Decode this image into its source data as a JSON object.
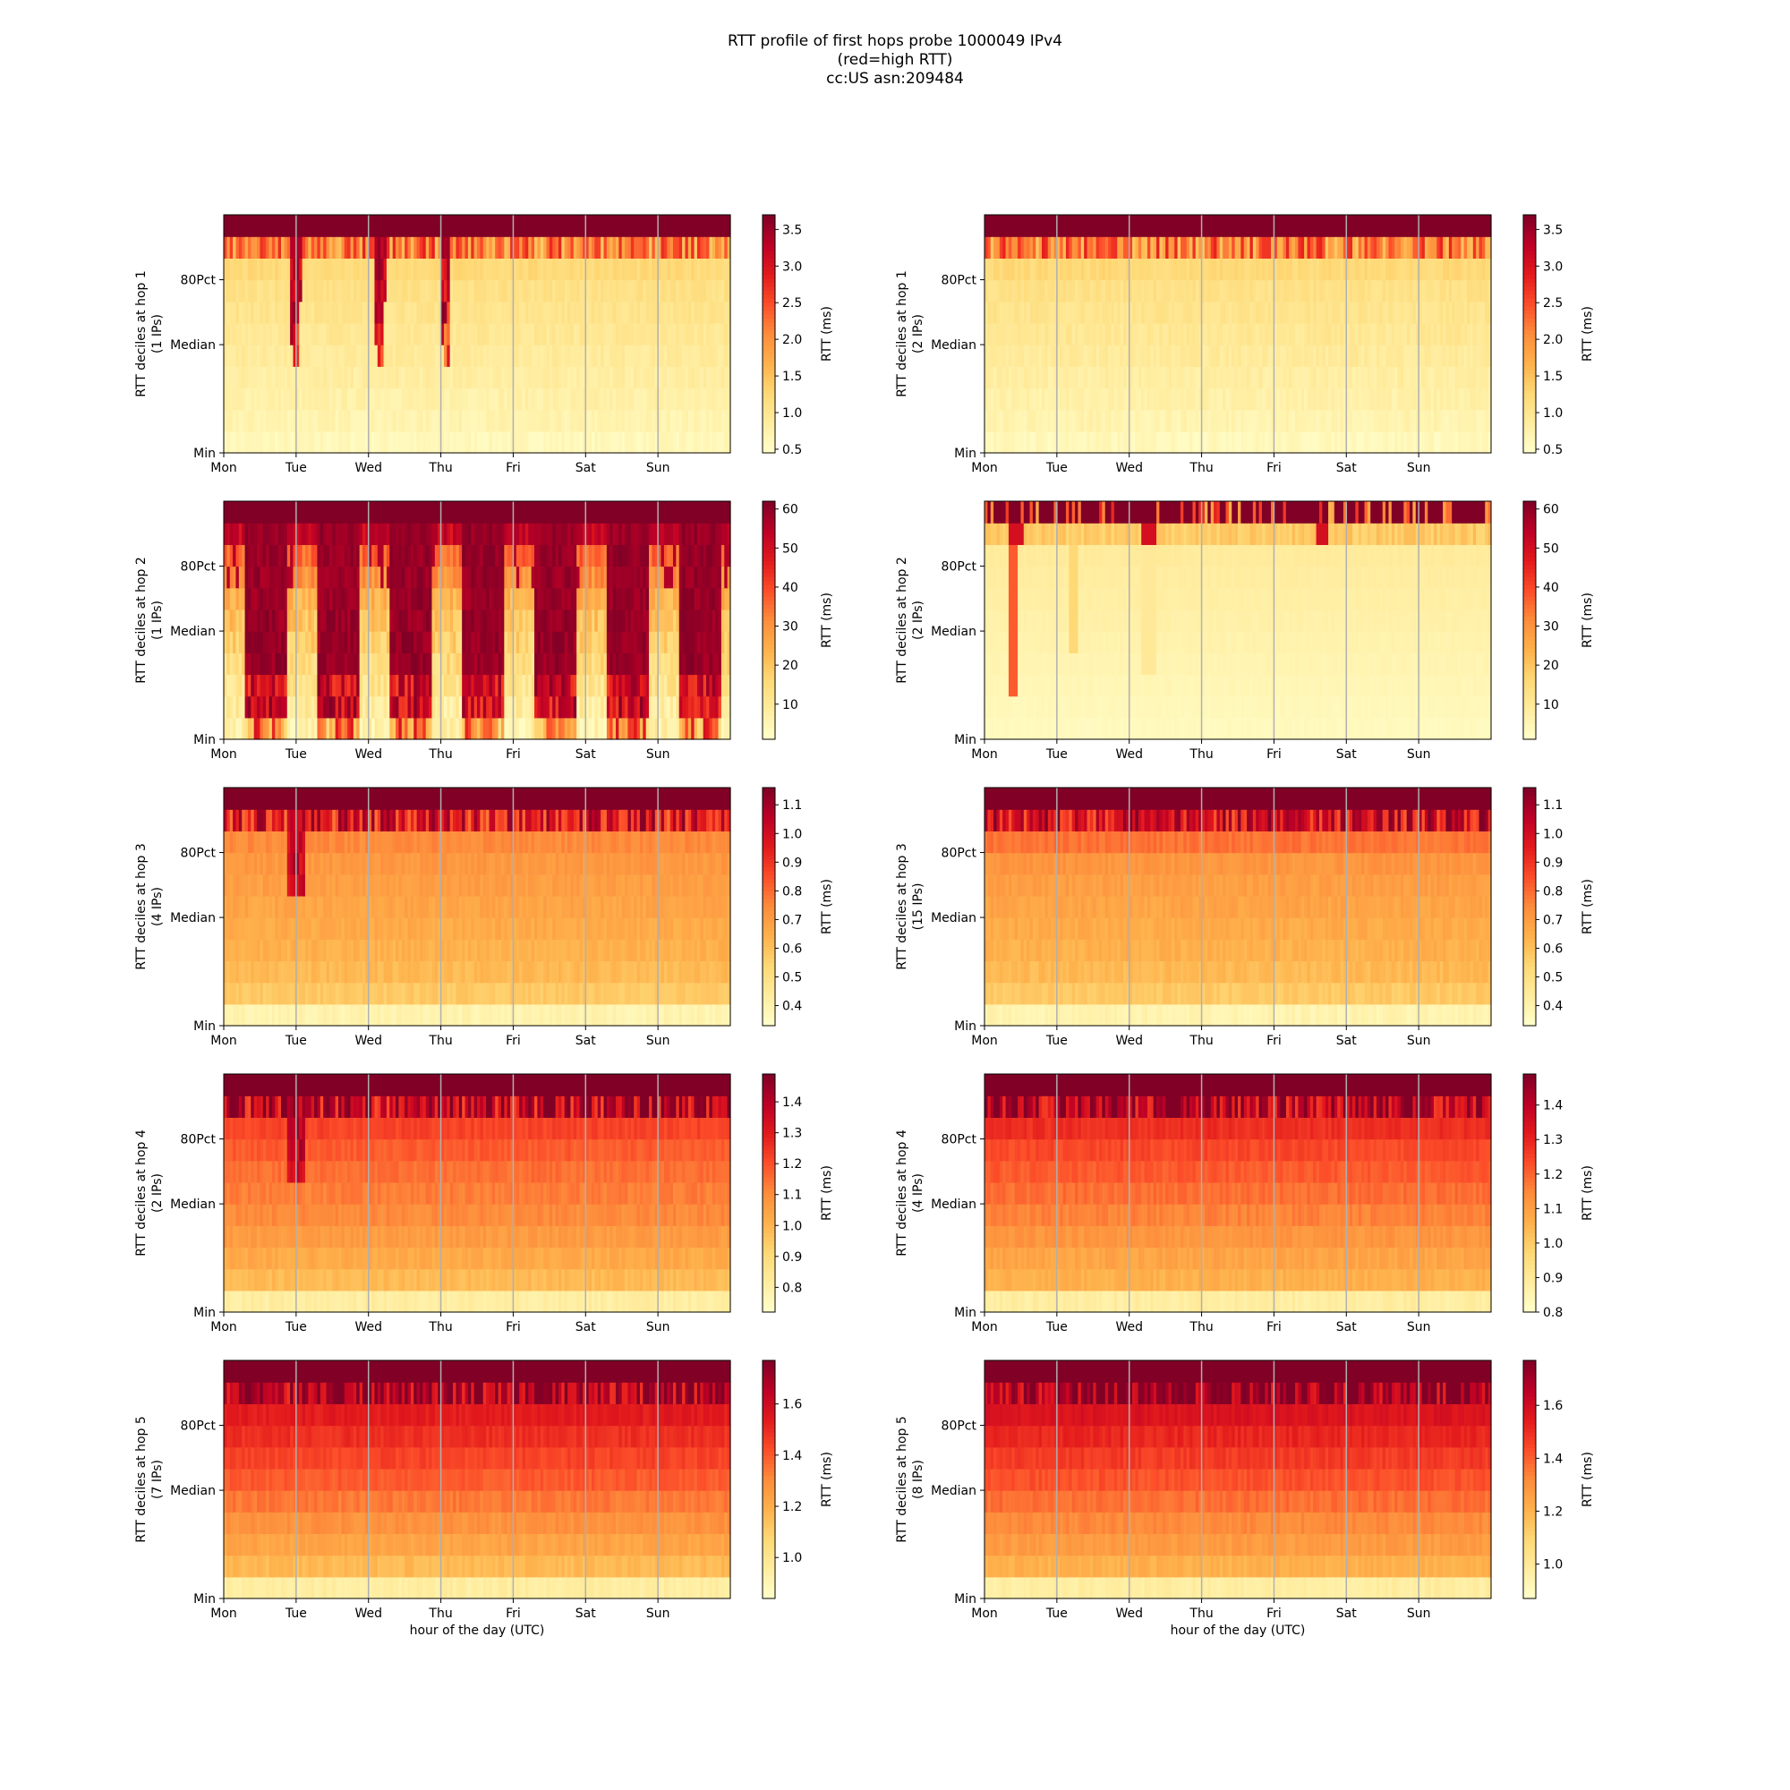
{
  "figure": {
    "title_lines": [
      "RTT profile of first hops probe 1000049 IPv4",
      "(red=high RTT)",
      "cc:US asn:209484"
    ]
  },
  "colormap": {
    "name": "YlOrRd",
    "low": "#ffffcc",
    "mid": "#fd8d3c",
    "high": "#800026"
  },
  "shared_axes": {
    "x_ticks": [
      "Mon",
      "Tue",
      "Wed",
      "Thu",
      "Fri",
      "Sat",
      "Sun"
    ],
    "y_ticks": [
      "Min",
      "Median",
      "80Pct"
    ],
    "xlabel": "hour of the day (UTC)",
    "colorbar_label": "RTT (ms)"
  },
  "chart_data": [
    {
      "type": "heatmap",
      "ylabel": "RTT deciles at hop 1",
      "ips": "(1 IPs)",
      "clim": [
        0.45,
        3.7
      ],
      "cbar_ticks": [
        "0.5",
        "1.0",
        "1.5",
        "2.0",
        "2.5",
        "3.0",
        "3.5"
      ],
      "profile": "hop1a"
    },
    {
      "type": "heatmap",
      "ylabel": "RTT deciles at hop 1",
      "ips": "(2 IPs)",
      "clim": [
        0.45,
        3.7
      ],
      "cbar_ticks": [
        "0.5",
        "1.0",
        "1.5",
        "2.0",
        "2.5",
        "3.0",
        "3.5"
      ],
      "profile": "hop1b"
    },
    {
      "type": "heatmap",
      "ylabel": "RTT deciles at hop 2",
      "ips": "(1 IPs)",
      "clim": [
        1,
        62
      ],
      "cbar_ticks": [
        "10",
        "20",
        "30",
        "40",
        "50",
        "60"
      ],
      "profile": "hop2a"
    },
    {
      "type": "heatmap",
      "ylabel": "RTT deciles at hop 2",
      "ips": "(2 IPs)",
      "clim": [
        1,
        62
      ],
      "cbar_ticks": [
        "10",
        "20",
        "30",
        "40",
        "50",
        "60"
      ],
      "profile": "hop2b"
    },
    {
      "type": "heatmap",
      "ylabel": "RTT deciles at hop 3",
      "ips": "(4 IPs)",
      "clim": [
        0.33,
        1.16
      ],
      "cbar_ticks": [
        "0.4",
        "0.5",
        "0.6",
        "0.7",
        "0.8",
        "0.9",
        "1.0",
        "1.1"
      ],
      "profile": "hop3a"
    },
    {
      "type": "heatmap",
      "ylabel": "RTT deciles at hop 3",
      "ips": "(15 IPs)",
      "clim": [
        0.33,
        1.16
      ],
      "cbar_ticks": [
        "0.4",
        "0.5",
        "0.6",
        "0.7",
        "0.8",
        "0.9",
        "1.0",
        "1.1"
      ],
      "profile": "hop3b"
    },
    {
      "type": "heatmap",
      "ylabel": "RTT deciles at hop 4",
      "ips": "(2 IPs)",
      "clim": [
        0.72,
        1.49
      ],
      "cbar_ticks": [
        "0.8",
        "0.9",
        "1.0",
        "1.1",
        "1.2",
        "1.3",
        "1.4"
      ],
      "profile": "hop4a"
    },
    {
      "type": "heatmap",
      "ylabel": "RTT deciles at hop 4",
      "ips": "(4 IPs)",
      "clim": [
        0.8,
        1.49
      ],
      "cbar_ticks": [
        "0.8",
        "0.9",
        "1.0",
        "1.1",
        "1.2",
        "1.3",
        "1.4"
      ],
      "profile": "hop4b"
    },
    {
      "type": "heatmap",
      "ylabel": "RTT deciles at hop 5",
      "ips": "(7 IPs)",
      "clim": [
        0.84,
        1.77
      ],
      "cbar_ticks": [
        "1.0",
        "1.2",
        "1.4",
        "1.6"
      ],
      "profile": "hop5a"
    },
    {
      "type": "heatmap",
      "ylabel": "RTT deciles at hop 5",
      "ips": "(8 IPs)",
      "clim": [
        0.87,
        1.77
      ],
      "cbar_ticks": [
        "1.0",
        "1.2",
        "1.4",
        "1.6"
      ],
      "profile": "hop5b"
    }
  ]
}
